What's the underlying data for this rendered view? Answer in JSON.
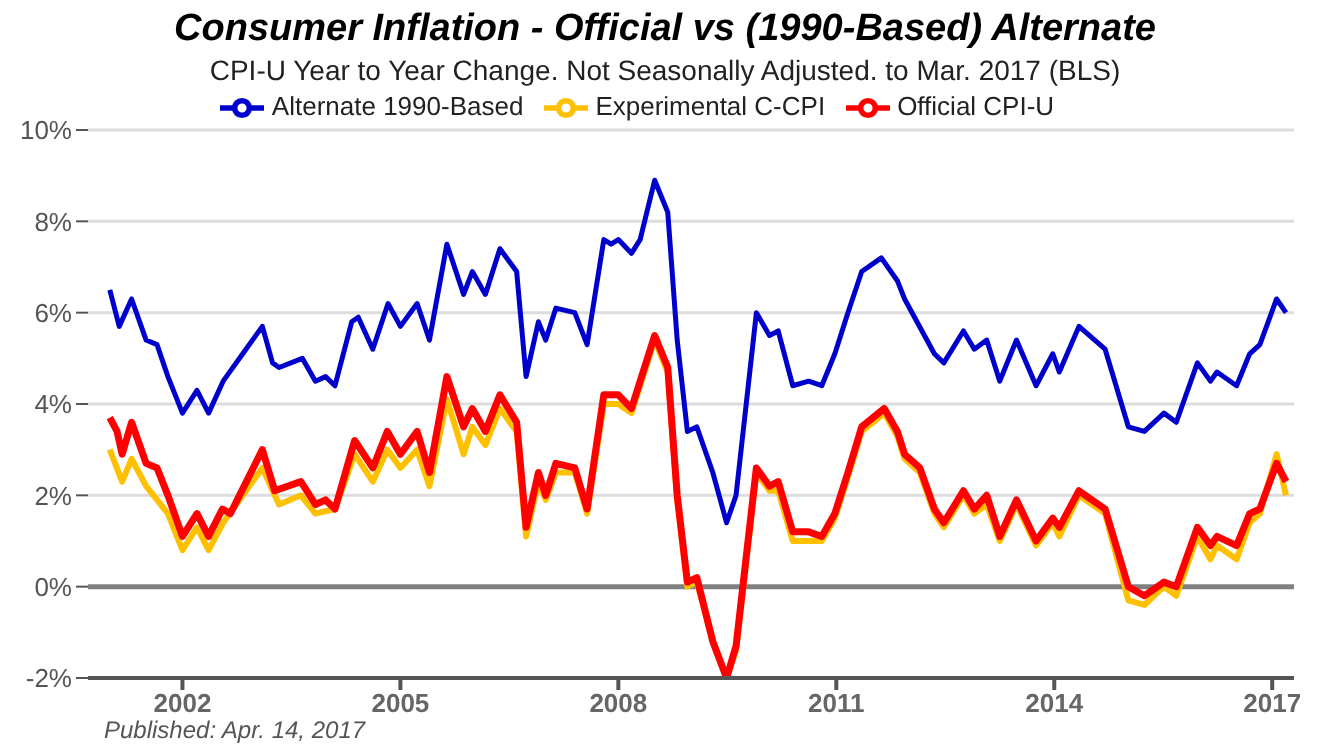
{
  "chart_data": {
    "type": "line",
    "title": "Consumer Inflation - Official vs (1990-Based) Alternate",
    "subtitle": "CPI-U Year to Year Change. Not Seasonally Adjusted. to Mar. 2017  (BLS)",
    "annotations": [
      "Published: Apr. 14, 2017"
    ],
    "series": [
      {
        "name": "Official CPI-U",
        "color": "#ff0000",
        "x": [
          2001.0,
          2001.1,
          2001.17,
          2001.3,
          2001.5,
          2001.65,
          2001.8,
          2002.0,
          2002.2,
          2002.36,
          2002.55,
          2002.66,
          2003.1,
          2003.27,
          2003.63,
          2003.83,
          2003.97,
          2004.1,
          2004.37,
          2004.62,
          2004.82,
          2005.0,
          2005.23,
          2005.4,
          2005.64,
          2005.87,
          2005.99,
          2006.17,
          2006.37,
          2006.6,
          2006.73,
          2006.9,
          2007.0,
          2007.14,
          2007.4,
          2007.57,
          2007.8,
          2008.0,
          2008.18,
          2008.5,
          2008.68,
          2008.81,
          2008.95,
          2009.08,
          2009.3,
          2009.49,
          2009.62,
          2009.9,
          2010.08,
          2010.2,
          2010.4,
          2010.62,
          2010.8,
          2010.98,
          2011.16,
          2011.35,
          2011.66,
          2011.84,
          2011.94,
          2012.15,
          2012.35,
          2012.48,
          2012.75,
          2012.9,
          2013.07,
          2013.25,
          2013.48,
          2013.75,
          2013.98,
          2014.07,
          2014.34,
          2014.7,
          2015.02,
          2015.24,
          2015.51,
          2015.68,
          2015.97,
          2016.15,
          2016.24,
          2016.51,
          2016.69,
          2016.83,
          2017.06,
          2017.19
        ],
        "values": [
          3.7,
          3.4,
          2.9,
          3.6,
          2.7,
          2.6,
          2.0,
          1.1,
          1.6,
          1.1,
          1.7,
          1.6,
          3.0,
          2.1,
          2.3,
          1.8,
          1.9,
          1.7,
          3.2,
          2.6,
          3.4,
          2.9,
          3.4,
          2.5,
          4.6,
          3.5,
          3.9,
          3.4,
          4.2,
          3.6,
          1.3,
          2.5,
          2.0,
          2.7,
          2.6,
          1.7,
          4.2,
          4.2,
          3.9,
          5.5,
          4.8,
          2.0,
          0.1,
          0.2,
          -1.2,
          -2.0,
          -1.3,
          2.6,
          2.2,
          2.3,
          1.2,
          1.2,
          1.1,
          1.6,
          2.5,
          3.5,
          3.9,
          3.4,
          2.9,
          2.6,
          1.7,
          1.4,
          2.1,
          1.7,
          2.0,
          1.1,
          1.9,
          1.0,
          1.5,
          1.3,
          2.1,
          1.7,
          0.0,
          -0.2,
          0.1,
          0.0,
          1.3,
          0.9,
          1.1,
          0.9,
          1.6,
          1.7,
          2.7,
          2.3
        ]
      },
      {
        "name": "Experimental C-CPI",
        "color": "#ffc000",
        "x": [
          2001.0,
          2001.17,
          2001.3,
          2001.5,
          2001.8,
          2002.0,
          2002.2,
          2002.36,
          2002.56,
          2003.1,
          2003.33,
          2003.63,
          2003.83,
          2004.1,
          2004.37,
          2004.62,
          2004.82,
          2005.0,
          2005.23,
          2005.4,
          2005.64,
          2005.87,
          2005.99,
          2006.17,
          2006.37,
          2006.6,
          2006.73,
          2006.9,
          2007.0,
          2007.14,
          2007.4,
          2007.57,
          2007.8,
          2008.0,
          2008.18,
          2008.5,
          2008.68,
          2008.81,
          2008.95,
          2009.08,
          2009.3,
          2009.49,
          2009.62,
          2009.9,
          2010.08,
          2010.2,
          2010.4,
          2010.62,
          2010.8,
          2010.98,
          2011.16,
          2011.35,
          2011.66,
          2011.84,
          2011.94,
          2012.15,
          2012.35,
          2012.48,
          2012.75,
          2012.9,
          2013.07,
          2013.25,
          2013.48,
          2013.75,
          2013.98,
          2014.07,
          2014.34,
          2014.7,
          2015.02,
          2015.24,
          2015.51,
          2015.68,
          2015.97,
          2016.15,
          2016.24,
          2016.51,
          2016.69,
          2016.83,
          2017.06,
          2017.19
        ],
        "values": [
          3.0,
          2.3,
          2.8,
          2.2,
          1.6,
          0.8,
          1.3,
          0.8,
          1.4,
          2.6,
          1.8,
          2.0,
          1.6,
          1.7,
          2.9,
          2.3,
          3.0,
          2.6,
          3.0,
          2.2,
          4.1,
          2.9,
          3.5,
          3.1,
          3.9,
          3.4,
          1.1,
          2.3,
          1.9,
          2.5,
          2.5,
          1.6,
          4.0,
          4.0,
          3.8,
          5.4,
          4.7,
          1.9,
          0.0,
          0.1,
          -1.2,
          -2.0,
          -1.4,
          2.5,
          2.1,
          2.1,
          1.0,
          1.0,
          1.0,
          1.5,
          2.4,
          3.4,
          3.8,
          3.3,
          2.8,
          2.5,
          1.6,
          1.3,
          2.0,
          1.6,
          1.8,
          1.0,
          1.8,
          0.9,
          1.4,
          1.1,
          2.0,
          1.6,
          -0.3,
          -0.4,
          0.0,
          -0.2,
          1.1,
          0.6,
          0.9,
          0.6,
          1.4,
          1.6,
          2.9,
          2.0
        ]
      },
      {
        "name": "Alternate 1990-Based",
        "color": "#0000cc",
        "x": [
          2001.0,
          2001.13,
          2001.3,
          2001.5,
          2001.65,
          2001.8,
          2002.0,
          2002.2,
          2002.36,
          2002.56,
          2002.83,
          2003.1,
          2003.24,
          2003.33,
          2003.65,
          2003.83,
          2003.97,
          2004.1,
          2004.33,
          2004.42,
          2004.62,
          2004.83,
          2005.0,
          2005.23,
          2005.4,
          2005.64,
          2005.87,
          2005.99,
          2006.17,
          2006.37,
          2006.6,
          2006.73,
          2006.9,
          2007.0,
          2007.14,
          2007.4,
          2007.57,
          2007.8,
          2007.9,
          2008.0,
          2008.18,
          2008.3,
          2008.5,
          2008.68,
          2008.81,
          2008.95,
          2009.08,
          2009.3,
          2009.49,
          2009.62,
          2009.9,
          2010.08,
          2010.2,
          2010.4,
          2010.62,
          2010.8,
          2010.98,
          2011.16,
          2011.35,
          2011.62,
          2011.84,
          2011.94,
          2012.35,
          2012.48,
          2012.75,
          2012.9,
          2013.07,
          2013.25,
          2013.48,
          2013.75,
          2013.98,
          2014.07,
          2014.34,
          2014.7,
          2015.02,
          2015.24,
          2015.51,
          2015.68,
          2015.97,
          2016.15,
          2016.24,
          2016.51,
          2016.69,
          2016.83,
          2017.06,
          2017.19
        ],
        "values": [
          6.5,
          5.7,
          6.3,
          5.4,
          5.3,
          4.6,
          3.8,
          4.3,
          3.8,
          4.5,
          5.1,
          5.7,
          4.9,
          4.8,
          5.0,
          4.5,
          4.6,
          4.4,
          5.8,
          5.9,
          5.2,
          6.2,
          5.7,
          6.2,
          5.4,
          7.5,
          6.4,
          6.9,
          6.4,
          7.4,
          6.9,
          4.6,
          5.8,
          5.4,
          6.1,
          6.0,
          5.3,
          7.6,
          7.5,
          7.6,
          7.3,
          7.6,
          8.9,
          8.2,
          5.4,
          3.4,
          3.5,
          2.5,
          1.4,
          2.0,
          6.0,
          5.5,
          5.6,
          4.4,
          4.5,
          4.4,
          5.1,
          6.0,
          6.9,
          7.2,
          6.7,
          6.3,
          5.1,
          4.9,
          5.6,
          5.2,
          5.4,
          4.5,
          5.4,
          4.4,
          5.1,
          4.7,
          5.7,
          5.2,
          3.5,
          3.4,
          3.8,
          3.6,
          4.9,
          4.5,
          4.7,
          4.4,
          5.1,
          5.3,
          6.3,
          6.0
        ]
      }
    ],
    "xlim": [
      2000.7,
      2017.3
    ],
    "xticks": [
      2002,
      2005,
      2008,
      2011,
      2014,
      2017
    ],
    "ylim": [
      -2,
      10
    ],
    "yticks": [
      {
        "value": -2,
        "label": "-2%"
      },
      {
        "value": 0,
        "label": "0%"
      },
      {
        "value": 2,
        "label": "2%"
      },
      {
        "value": 4,
        "label": "4%"
      },
      {
        "value": 6,
        "label": "6%"
      },
      {
        "value": 8,
        "label": "8%"
      },
      {
        "value": 10,
        "label": "10%"
      }
    ],
    "ref_lines": [
      {
        "axis": "y",
        "value": 0,
        "color": "#808080"
      }
    ],
    "grid": "y",
    "legend": "top",
    "marker": "none",
    "line_style": "solid"
  }
}
